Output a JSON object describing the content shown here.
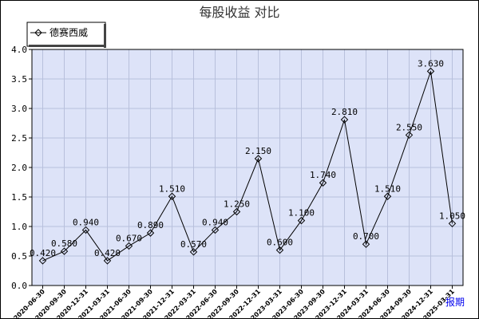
{
  "chart_data": {
    "type": "line",
    "title": "每股收益  对比",
    "legend_position": "top-left",
    "grid": true,
    "ylim": [
      0,
      4.0
    ],
    "yticks": [
      "0.0",
      "0.5",
      "1.0",
      "1.5",
      "2.0",
      "2.5",
      "3.0",
      "3.5",
      "4.0"
    ],
    "x": [
      "2020-06-30",
      "2020-09-30",
      "2020-12-31",
      "2021-03-31",
      "2021-06-30",
      "2021-09-30",
      "2021-12-31",
      "2022-03-31",
      "2022-06-30",
      "2022-09-30",
      "2022-12-31",
      "2023-03-31",
      "2023-06-30",
      "2023-09-30",
      "2023-12-31",
      "2024-03-31",
      "2024-06-30",
      "2024-09-30",
      "2024-12-31",
      "2025-03-31"
    ],
    "series": [
      {
        "name": "德赛西威",
        "values": [
          0.42,
          0.58,
          0.94,
          0.42,
          0.67,
          0.89,
          1.51,
          0.57,
          0.94,
          1.25,
          2.15,
          0.6,
          1.1,
          1.74,
          2.81,
          0.7,
          1.51,
          2.55,
          3.63,
          1.05
        ],
        "labels": [
          "0.420",
          "0.580",
          "0.940",
          "0.420",
          "0.670",
          "0.890",
          "1.510",
          "0.570",
          "0.940",
          "1.250",
          "2.150",
          "0.600",
          "1.100",
          "1.740",
          "2.810",
          "0.700",
          "1.510",
          "2.550",
          "3.630",
          "1.050"
        ],
        "color": "#000000"
      }
    ],
    "plot_background": "#dde3f8",
    "grid_color": "#b8c0dc",
    "corner_link": "报期"
  }
}
